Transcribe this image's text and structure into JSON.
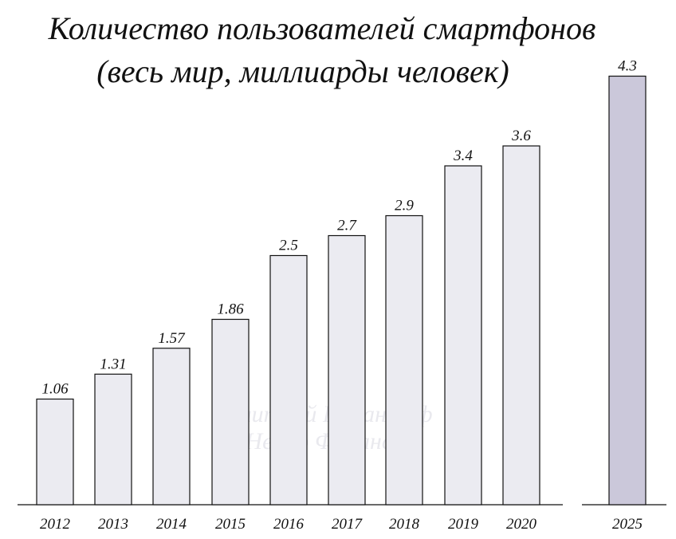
{
  "title": {
    "line1": "Количество пользователей смартфонов",
    "line2": "(весь мир, миллиарды человек)"
  },
  "watermark": {
    "line1": "Дмитрий Романофф",
    "line2": "Нейро Финансы"
  },
  "colors": {
    "bar_fill": "#ebebf1",
    "bar_highlight_fill": "#cbc8da",
    "bar_stroke": "#111111",
    "axis": "#111111"
  },
  "chart_data": {
    "type": "bar",
    "title": "Количество пользователей смартфонов (весь мир, миллиарды человек)",
    "xlabel": "",
    "ylabel": "",
    "categories": [
      "2012",
      "2013",
      "2014",
      "2015",
      "2016",
      "2017",
      "2018",
      "2019",
      "2020",
      "2025"
    ],
    "values": [
      1.06,
      1.31,
      1.57,
      1.86,
      2.5,
      2.7,
      2.9,
      3.4,
      3.6,
      4.3
    ],
    "value_labels": [
      "1.06",
      "1.31",
      "1.57",
      "1.86",
      "2.5",
      "2.7",
      "2.9",
      "3.4",
      "3.6",
      "4.3"
    ],
    "highlighted": [
      "2025"
    ],
    "grid": false,
    "legend": "none"
  }
}
